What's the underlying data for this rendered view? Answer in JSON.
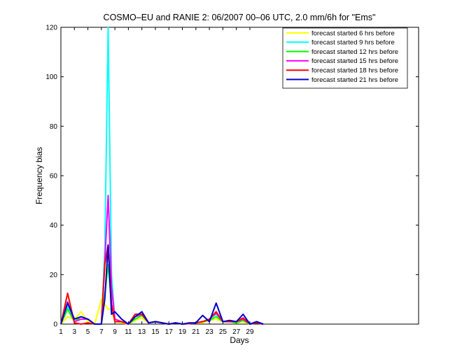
{
  "chart_data": {
    "type": "line",
    "title": "COSMO–EU and RANIE 2: 06/2007 00–06 UTC, 2.0 mm/6h for \"Ems\"",
    "xlabel": "Days",
    "ylabel": "Frequency bias",
    "xlim": [
      1,
      54
    ],
    "ylim": [
      0,
      120
    ],
    "xticks": [
      1,
      3,
      5,
      7,
      9,
      11,
      13,
      15,
      17,
      19,
      21,
      23,
      25,
      27,
      29
    ],
    "yticks": [
      0,
      20,
      40,
      60,
      80,
      100,
      120
    ],
    "grid": false,
    "legend_position": "top-right",
    "x": [
      1,
      2,
      3,
      4,
      5,
      6,
      7,
      7.5,
      8,
      8.5,
      9,
      10,
      11,
      12,
      13,
      14,
      15,
      16,
      17,
      18,
      19,
      20,
      21,
      22,
      23,
      24,
      25,
      26,
      27,
      28,
      29,
      30,
      31
    ],
    "series": [
      {
        "name": "forecast started 6 hrs before",
        "color": "#ffff00",
        "values": [
          0,
          3,
          2,
          5,
          1,
          0,
          10,
          8,
          6,
          6,
          1,
          0.5,
          0,
          1.5,
          2.5,
          0.5,
          1,
          0.5,
          0,
          0.5,
          0,
          0.2,
          0.5,
          0.5,
          1.5,
          2,
          1,
          1,
          0.5,
          1,
          0,
          0.5,
          0
        ]
      },
      {
        "name": "forecast started 9 hrs before",
        "color": "#00ffff",
        "values": [
          0,
          7,
          1,
          2,
          2,
          0,
          0,
          30,
          120,
          20,
          2,
          1,
          0,
          3,
          4,
          0.5,
          1,
          0.5,
          0,
          0.5,
          0,
          0.2,
          0.5,
          1,
          2,
          4,
          1,
          1,
          1,
          2,
          0,
          0.5,
          0
        ]
      },
      {
        "name": "forecast started 12 hrs before",
        "color": "#00ff00",
        "values": [
          0,
          6,
          1,
          3,
          2,
          0,
          0,
          12,
          24,
          8,
          2,
          1,
          0,
          2,
          3.5,
          0.5,
          1,
          0.5,
          0,
          0.5,
          0,
          0.2,
          0.5,
          1,
          1.5,
          3,
          1,
          1,
          0.5,
          1.5,
          0,
          0.5,
          0
        ]
      },
      {
        "name": "forecast started 15 hrs before",
        "color": "#ff00ff",
        "values": [
          0,
          9,
          1,
          2,
          2,
          0,
          0,
          25,
          52,
          15,
          2,
          1,
          0,
          3,
          4,
          0.5,
          1,
          0.5,
          0,
          0.5,
          0,
          0.2,
          0.5,
          1,
          2,
          4.5,
          1,
          1,
          1,
          2,
          0,
          0.5,
          0
        ]
      },
      {
        "name": "forecast started 18 hrs before",
        "color": "#ff0000",
        "values": [
          0,
          12.5,
          0.5,
          0,
          0.5,
          0,
          0,
          24,
          32,
          8,
          1,
          1,
          0,
          4,
          4,
          0.5,
          1,
          0.5,
          0,
          0.5,
          0,
          0.2,
          0.5,
          1,
          2,
          5,
          1,
          1,
          1,
          2.5,
          0,
          0.5,
          0
        ]
      },
      {
        "name": "forecast started 21 hrs before",
        "color": "#0000cd",
        "values": [
          0,
          8.5,
          2,
          3,
          2,
          0,
          0,
          10,
          32,
          4,
          5,
          2,
          0,
          3,
          5,
          0.5,
          1,
          0.5,
          0,
          0.5,
          0,
          0.5,
          0.5,
          3.5,
          1,
          8.5,
          1,
          1.5,
          1,
          4,
          0,
          1,
          0
        ]
      }
    ]
  }
}
